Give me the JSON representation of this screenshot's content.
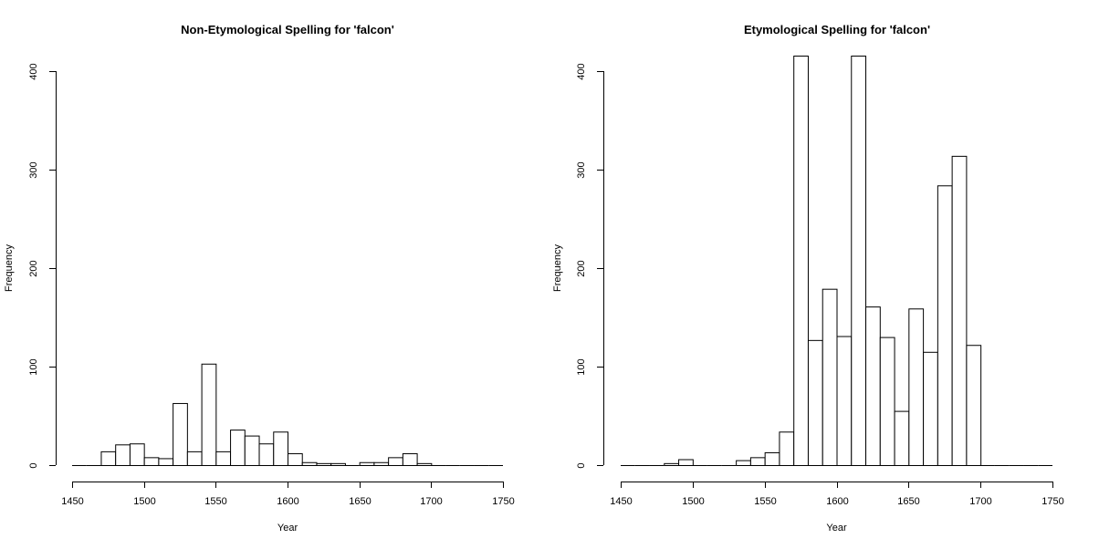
{
  "chart_data": [
    {
      "type": "bar",
      "title": "Non-Etymological Spelling for 'falcon'",
      "xlabel": "Year",
      "ylabel": "Frequency",
      "xlim": [
        1450,
        1750
      ],
      "ylim": [
        0,
        400
      ],
      "xticks": [
        1450,
        1500,
        1550,
        1600,
        1650,
        1700,
        1750
      ],
      "yticks": [
        0,
        100,
        200,
        300,
        400
      ],
      "bin_width": 10,
      "bin_starts": [
        1450,
        1460,
        1470,
        1480,
        1490,
        1500,
        1510,
        1520,
        1530,
        1540,
        1550,
        1560,
        1570,
        1580,
        1590,
        1600,
        1610,
        1620,
        1630,
        1640,
        1650,
        1660,
        1670,
        1680,
        1690,
        1700,
        1710,
        1720,
        1730,
        1740
      ],
      "values": [
        0,
        0,
        14,
        21,
        22,
        8,
        7,
        63,
        14,
        103,
        14,
        36,
        30,
        22,
        34,
        12,
        3,
        2,
        2,
        0,
        3,
        3,
        8,
        12,
        2,
        0,
        0,
        0,
        0,
        0
      ]
    },
    {
      "type": "bar",
      "title": "Etymological Spelling for 'falcon'",
      "xlabel": "Year",
      "ylabel": "Frequency",
      "xlim": [
        1450,
        1750
      ],
      "ylim": [
        0,
        400
      ],
      "xticks": [
        1450,
        1500,
        1550,
        1600,
        1650,
        1700,
        1750
      ],
      "yticks": [
        0,
        100,
        200,
        300,
        400
      ],
      "bin_width": 10,
      "bin_starts": [
        1450,
        1460,
        1470,
        1480,
        1490,
        1500,
        1510,
        1520,
        1530,
        1540,
        1550,
        1560,
        1570,
        1580,
        1590,
        1600,
        1610,
        1620,
        1630,
        1640,
        1650,
        1660,
        1670,
        1680,
        1690,
        1700,
        1710,
        1720,
        1730,
        1740
      ],
      "values": [
        0,
        0,
        0,
        2,
        6,
        0,
        0,
        0,
        5,
        8,
        13,
        34,
        450,
        127,
        179,
        131,
        450,
        161,
        130,
        55,
        159,
        115,
        284,
        314,
        122,
        0,
        0,
        0,
        0,
        0
      ],
      "note_clipped_bins": [
        1570,
        1610
      ]
    }
  ]
}
